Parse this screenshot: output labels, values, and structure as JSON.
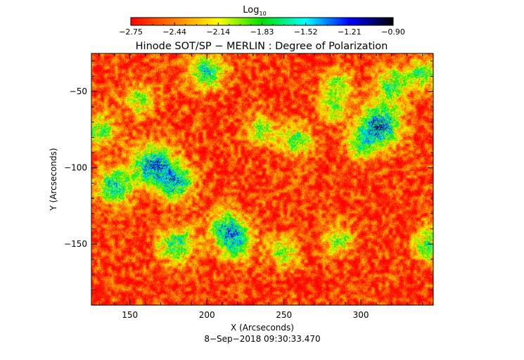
{
  "chart_data": {
    "type": "heatmap",
    "title": "Hinode SOT/SP − MERLIN : Degree of Polarization",
    "xlabel": "X (Arcseconds)",
    "ylabel": "Y (Arcseconds)",
    "footer": "8−Sep−2018 09:30:33.470",
    "colorbar": {
      "label": "Log",
      "label_subscript": "10",
      "range": [
        -2.75,
        -0.9
      ],
      "tick_labels": [
        "−2.75",
        "−2.44",
        "−2.14",
        "−1.83",
        "−1.52",
        "−1.21",
        "−0.90"
      ],
      "colormap": [
        "#ff0000",
        "#ff8000",
        "#ffff00",
        "#00e000",
        "#00ffff",
        "#0000ff",
        "#000000"
      ]
    },
    "xlim": [
      125,
      347
    ],
    "ylim": [
      -190,
      -25
    ],
    "x_ticks": [
      150,
      200,
      250,
      300
    ],
    "y_ticks": [
      -50,
      -100,
      -150
    ],
    "x_tick_labels": [
      "150",
      "200",
      "250",
      "300"
    ],
    "y_tick_labels": [
      "−50",
      "−100",
      "−150"
    ],
    "dominant_level": -2.6,
    "high_polarization_regions": [
      {
        "x": 165,
        "y": -98,
        "level": -1.3
      },
      {
        "x": 180,
        "y": -110,
        "level": -1.5
      },
      {
        "x": 200,
        "y": -37,
        "level": -1.6
      },
      {
        "x": 140,
        "y": -112,
        "level": -1.5
      },
      {
        "x": 130,
        "y": -75,
        "level": -1.8
      },
      {
        "x": 312,
        "y": -72,
        "level": -1.2
      },
      {
        "x": 320,
        "y": -45,
        "level": -1.7
      },
      {
        "x": 340,
        "y": -38,
        "level": -1.8
      },
      {
        "x": 180,
        "y": -150,
        "level": -1.6
      },
      {
        "x": 213,
        "y": -140,
        "level": -1.5
      },
      {
        "x": 258,
        "y": -82,
        "level": -1.8
      },
      {
        "x": 235,
        "y": -75,
        "level": -1.9
      },
      {
        "x": 285,
        "y": -45,
        "level": -1.9
      },
      {
        "x": 283,
        "y": -60,
        "level": -1.9
      },
      {
        "x": 300,
        "y": -85,
        "level": -1.9
      },
      {
        "x": 345,
        "y": -150,
        "level": -1.7
      },
      {
        "x": 285,
        "y": -148,
        "level": -1.9
      },
      {
        "x": 250,
        "y": -155,
        "level": -1.9
      },
      {
        "x": 157,
        "y": -55,
        "level": -1.9
      },
      {
        "x": 220,
        "y": -150,
        "level": -1.8
      }
    ]
  }
}
